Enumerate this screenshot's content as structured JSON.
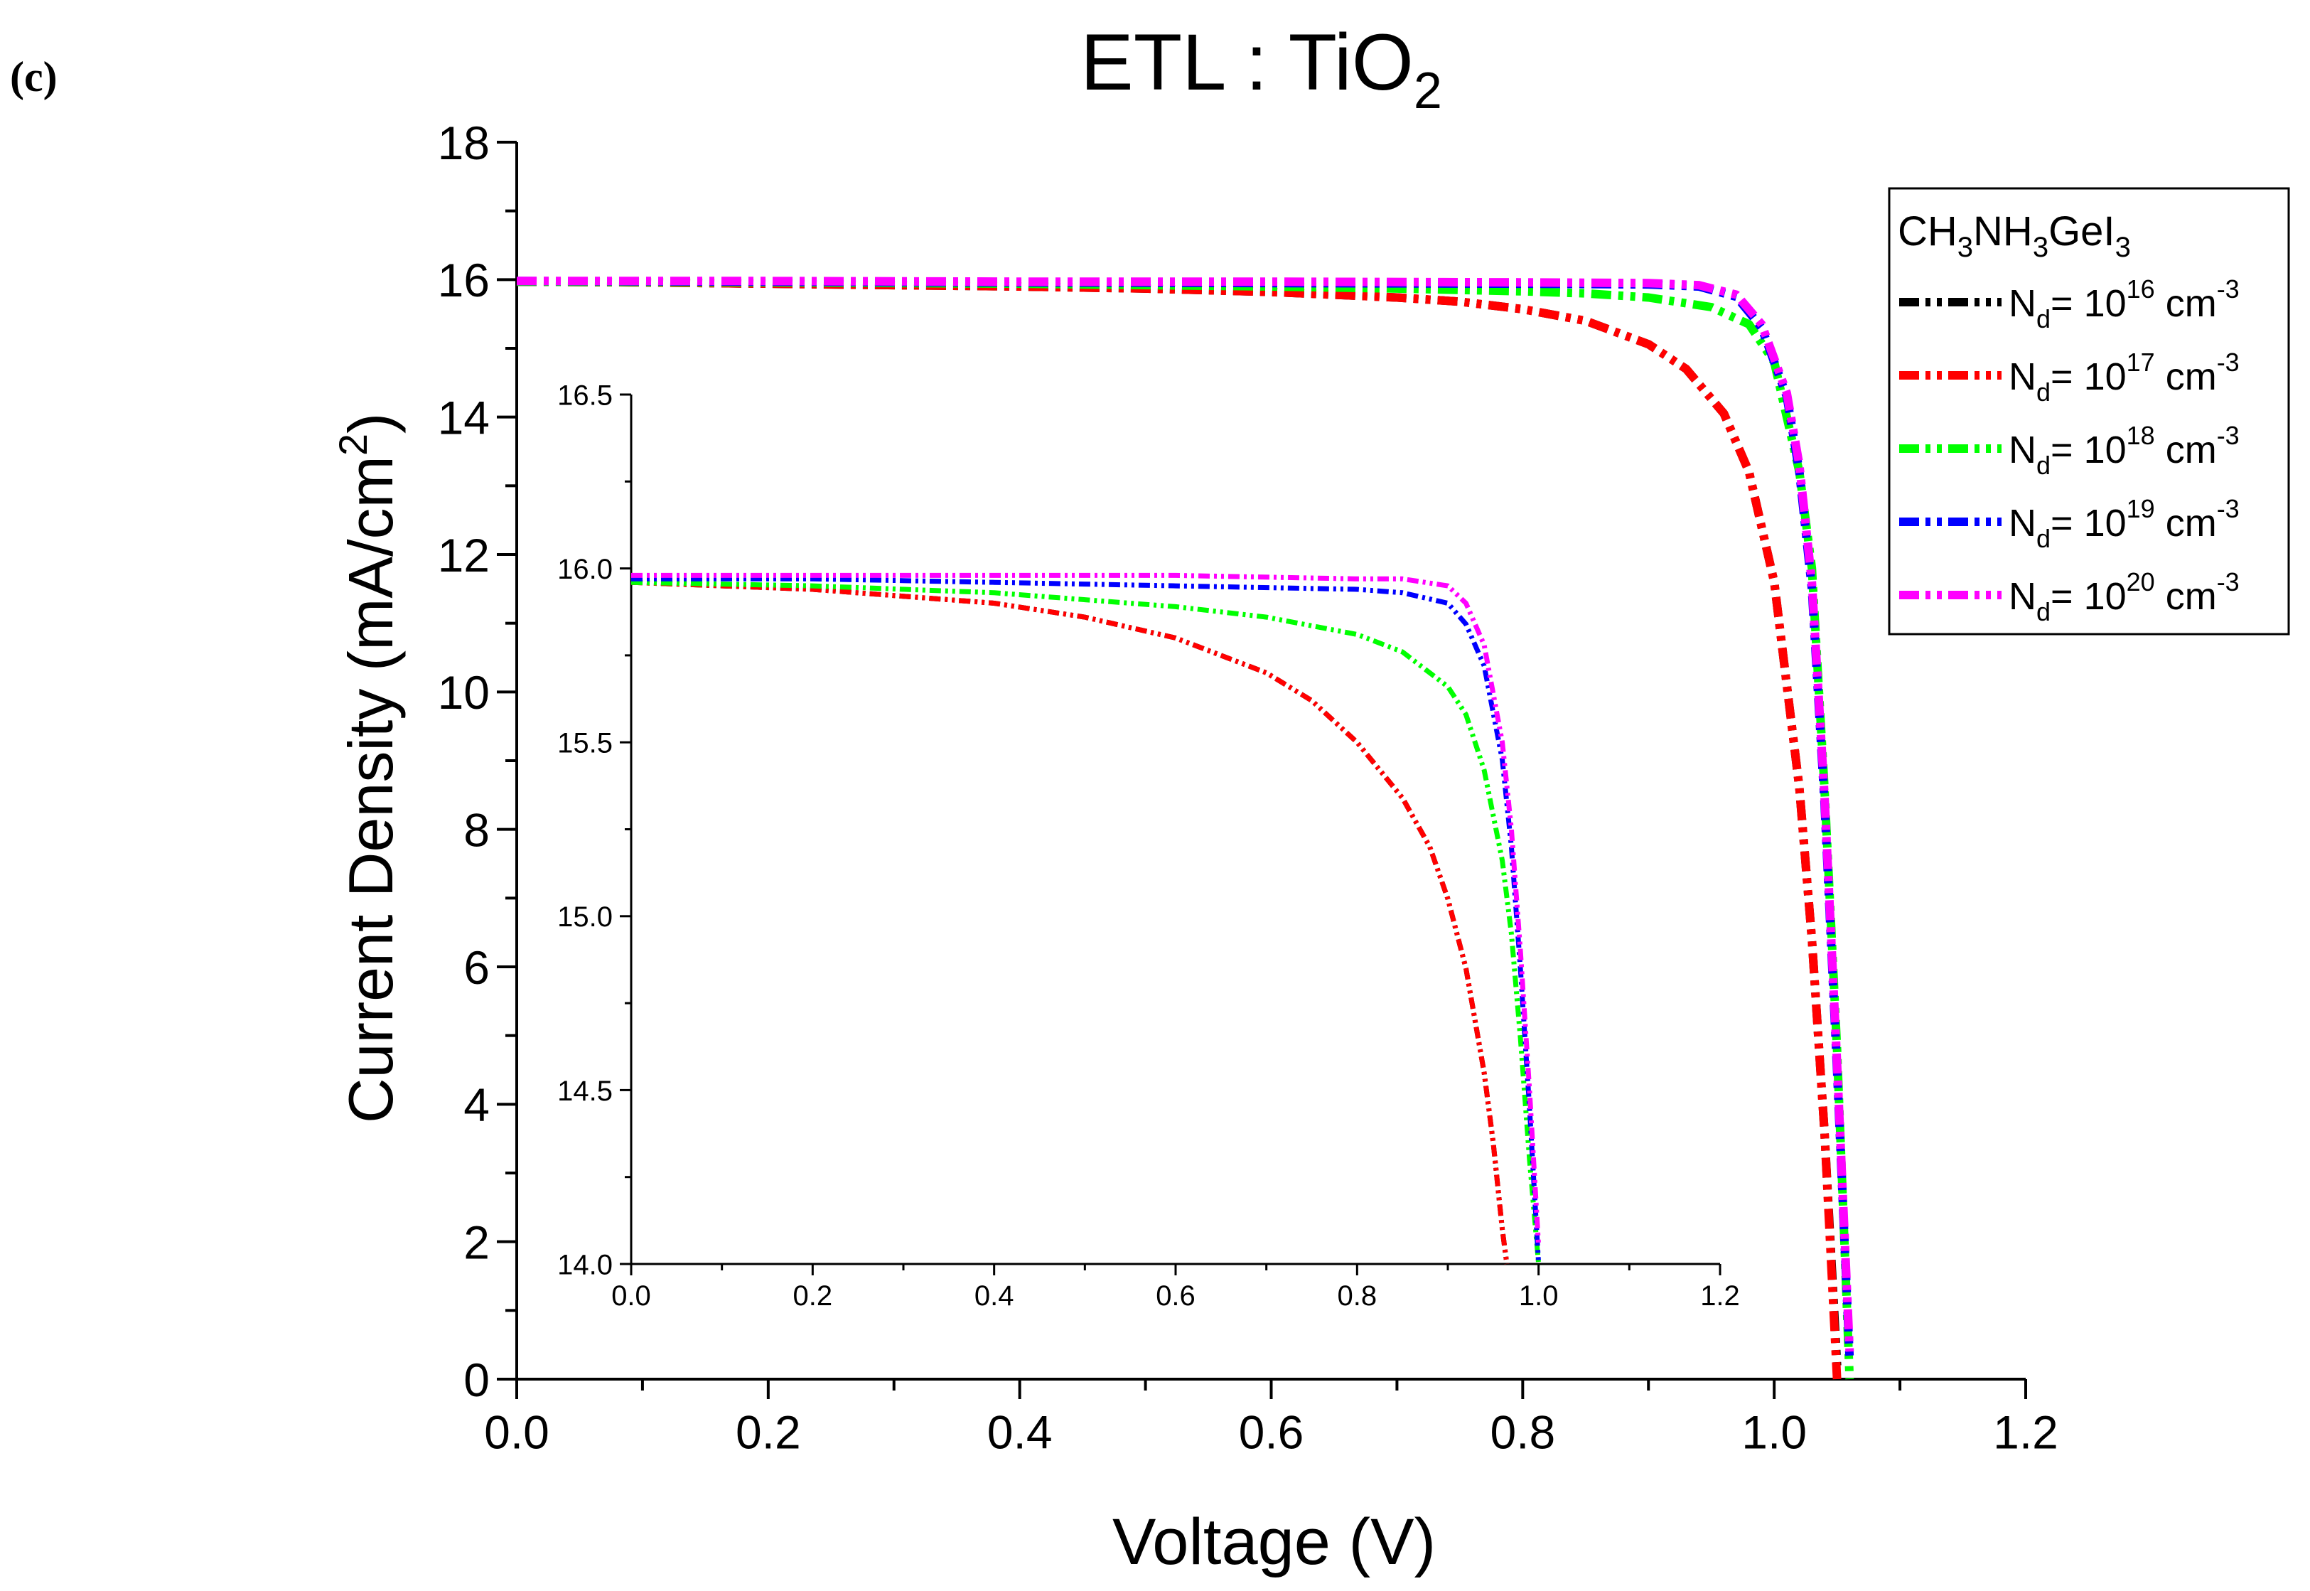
{
  "panel_label": "(c)",
  "chart_data": {
    "type": "line",
    "title": "ETL : TiO",
    "title_subscript": "2",
    "xlabel": "Voltage (V)",
    "ylabel_main": "Current Density (mA/cm",
    "ylabel_sup": "2",
    "ylabel_end": ")",
    "xlim": [
      0.0,
      1.2
    ],
    "ylim": [
      0,
      18
    ],
    "x_ticks": [
      "0.0",
      "0.2",
      "0.4",
      "0.6",
      "0.8",
      "1.0",
      "1.2"
    ],
    "y_ticks": [
      "0",
      "2",
      "4",
      "6",
      "8",
      "10",
      "12",
      "14",
      "16",
      "18"
    ],
    "grid": false,
    "legend": {
      "title_parts": [
        "CH",
        "3",
        "NH",
        "3",
        "GeI",
        "3"
      ],
      "placement": "top-right"
    },
    "series": [
      {
        "name": "Nd= 1016 cm-3",
        "label_base": "N",
        "label_sub": "d",
        "label_mid": "= 10",
        "label_exp": "16",
        "label_unit": " cm",
        "label_unit_exp": "-3",
        "color": "#000000",
        "x": [
          0.0,
          0.1,
          0.2,
          0.3,
          0.4,
          0.5,
          0.6,
          0.7,
          0.75,
          0.8,
          0.85,
          0.9,
          0.93,
          0.96,
          0.98,
          1.0,
          1.02,
          1.03,
          1.04,
          1.05
        ],
        "y": [
          15.97,
          15.96,
          15.94,
          15.92,
          15.9,
          15.87,
          15.82,
          15.74,
          15.68,
          15.57,
          15.4,
          15.06,
          14.7,
          14.05,
          13.2,
          11.6,
          8.6,
          6.4,
          3.6,
          0.2
        ]
      },
      {
        "name": "Nd= 1017 cm-3",
        "label_base": "N",
        "label_sub": "d",
        "label_mid": "= 10",
        "label_exp": "17",
        "label_unit": " cm",
        "label_unit_exp": "-3",
        "color": "#ff0000",
        "x": [
          0.0,
          0.1,
          0.2,
          0.3,
          0.4,
          0.5,
          0.6,
          0.7,
          0.75,
          0.8,
          0.85,
          0.9,
          0.93,
          0.96,
          0.98,
          1.0,
          1.02,
          1.03,
          1.04,
          1.05
        ],
        "y": [
          15.97,
          15.96,
          15.94,
          15.92,
          15.9,
          15.87,
          15.82,
          15.74,
          15.68,
          15.57,
          15.4,
          15.06,
          14.7,
          14.05,
          13.2,
          11.6,
          8.6,
          6.4,
          3.6,
          0.0
        ]
      },
      {
        "name": "Nd= 1018 cm-3",
        "label_base": "N",
        "label_sub": "d",
        "label_mid": "= 10",
        "label_exp": "18",
        "label_unit": " cm",
        "label_unit_exp": "-3",
        "color": "#00ff00",
        "x": [
          0.0,
          0.2,
          0.4,
          0.6,
          0.7,
          0.8,
          0.85,
          0.9,
          0.95,
          0.98,
          1.0,
          1.02,
          1.03,
          1.04,
          1.05,
          1.06
        ],
        "y": [
          15.97,
          15.96,
          15.94,
          15.9,
          15.87,
          15.83,
          15.8,
          15.74,
          15.6,
          15.35,
          14.8,
          13.2,
          11.8,
          8.6,
          4.8,
          0.0
        ]
      },
      {
        "name": "Nd= 1019 cm-3",
        "label_base": "N",
        "label_sub": "d",
        "label_mid": "= 10",
        "label_exp": "19",
        "label_unit": " cm",
        "label_unit_exp": "-3",
        "color": "#0000ff",
        "x": [
          0.0,
          0.2,
          0.4,
          0.6,
          0.8,
          0.9,
          0.94,
          0.97,
          0.99,
          1.01,
          1.02,
          1.03,
          1.04,
          1.05,
          1.06
        ],
        "y": [
          15.98,
          15.97,
          15.96,
          15.95,
          15.94,
          15.93,
          15.9,
          15.75,
          15.3,
          14.3,
          13.2,
          11.5,
          8.4,
          4.5,
          0.3
        ]
      },
      {
        "name": "Nd= 1020 cm-3",
        "label_base": "N",
        "label_sub": "d",
        "label_mid": "= 10",
        "label_exp": "20",
        "label_unit": " cm",
        "label_unit_exp": "-3",
        "color": "#ff00ff",
        "x": [
          0.0,
          0.2,
          0.4,
          0.6,
          0.8,
          0.9,
          0.94,
          0.97,
          0.99,
          1.01,
          1.02,
          1.03,
          1.04,
          1.05,
          1.06
        ],
        "y": [
          15.98,
          15.98,
          15.97,
          15.97,
          15.96,
          15.95,
          15.92,
          15.78,
          15.35,
          14.35,
          13.3,
          11.6,
          8.5,
          4.6,
          0.4
        ]
      }
    ],
    "inset": {
      "xlim": [
        0.0,
        1.2
      ],
      "ylim": [
        14.0,
        16.5
      ],
      "x_ticks": [
        "0.0",
        "0.2",
        "0.4",
        "0.6",
        "0.8",
        "1.0",
        "1.2"
      ],
      "y_ticks": [
        "14.0",
        "14.5",
        "15.0",
        "15.5",
        "16.0",
        "16.5"
      ],
      "series": [
        {
          "color": "#000000",
          "x": [
            0.0,
            0.1,
            0.2,
            0.3,
            0.4,
            0.5,
            0.6,
            0.7,
            0.75,
            0.8,
            0.85,
            0.88,
            0.9,
            0.92,
            0.94,
            0.95,
            0.96,
            0.965
          ],
          "y": [
            15.96,
            15.95,
            15.94,
            15.92,
            15.9,
            15.86,
            15.8,
            15.7,
            15.62,
            15.5,
            15.34,
            15.2,
            15.05,
            14.85,
            14.55,
            14.35,
            14.1,
            14.0
          ]
        },
        {
          "color": "#ff0000",
          "x": [
            0.0,
            0.1,
            0.2,
            0.3,
            0.4,
            0.5,
            0.6,
            0.7,
            0.75,
            0.8,
            0.85,
            0.88,
            0.9,
            0.92,
            0.94,
            0.95,
            0.96,
            0.965
          ],
          "y": [
            15.96,
            15.95,
            15.94,
            15.92,
            15.9,
            15.86,
            15.8,
            15.7,
            15.62,
            15.5,
            15.34,
            15.2,
            15.05,
            14.85,
            14.55,
            14.35,
            14.1,
            14.0
          ]
        },
        {
          "color": "#00ff00",
          "x": [
            0.0,
            0.2,
            0.4,
            0.5,
            0.6,
            0.7,
            0.8,
            0.85,
            0.9,
            0.92,
            0.94,
            0.96,
            0.97,
            0.98,
            0.99,
            1.0
          ],
          "y": [
            15.96,
            15.95,
            15.93,
            15.91,
            15.89,
            15.86,
            15.81,
            15.76,
            15.66,
            15.58,
            15.42,
            15.16,
            14.95,
            14.65,
            14.3,
            14.0
          ]
        },
        {
          "color": "#0000ff",
          "x": [
            0.0,
            0.2,
            0.4,
            0.6,
            0.8,
            0.85,
            0.9,
            0.92,
            0.94,
            0.96,
            0.97,
            0.98,
            0.99,
            1.0
          ],
          "y": [
            15.97,
            15.97,
            15.96,
            15.95,
            15.94,
            15.93,
            15.9,
            15.84,
            15.72,
            15.45,
            15.2,
            14.85,
            14.45,
            14.0
          ]
        },
        {
          "color": "#ff00ff",
          "x": [
            0.0,
            0.2,
            0.4,
            0.6,
            0.8,
            0.85,
            0.9,
            0.92,
            0.94,
            0.96,
            0.97,
            0.98,
            0.99,
            1.0
          ],
          "y": [
            15.98,
            15.98,
            15.98,
            15.98,
            15.97,
            15.97,
            15.95,
            15.9,
            15.78,
            15.5,
            15.25,
            14.9,
            14.5,
            14.05
          ]
        }
      ]
    }
  }
}
